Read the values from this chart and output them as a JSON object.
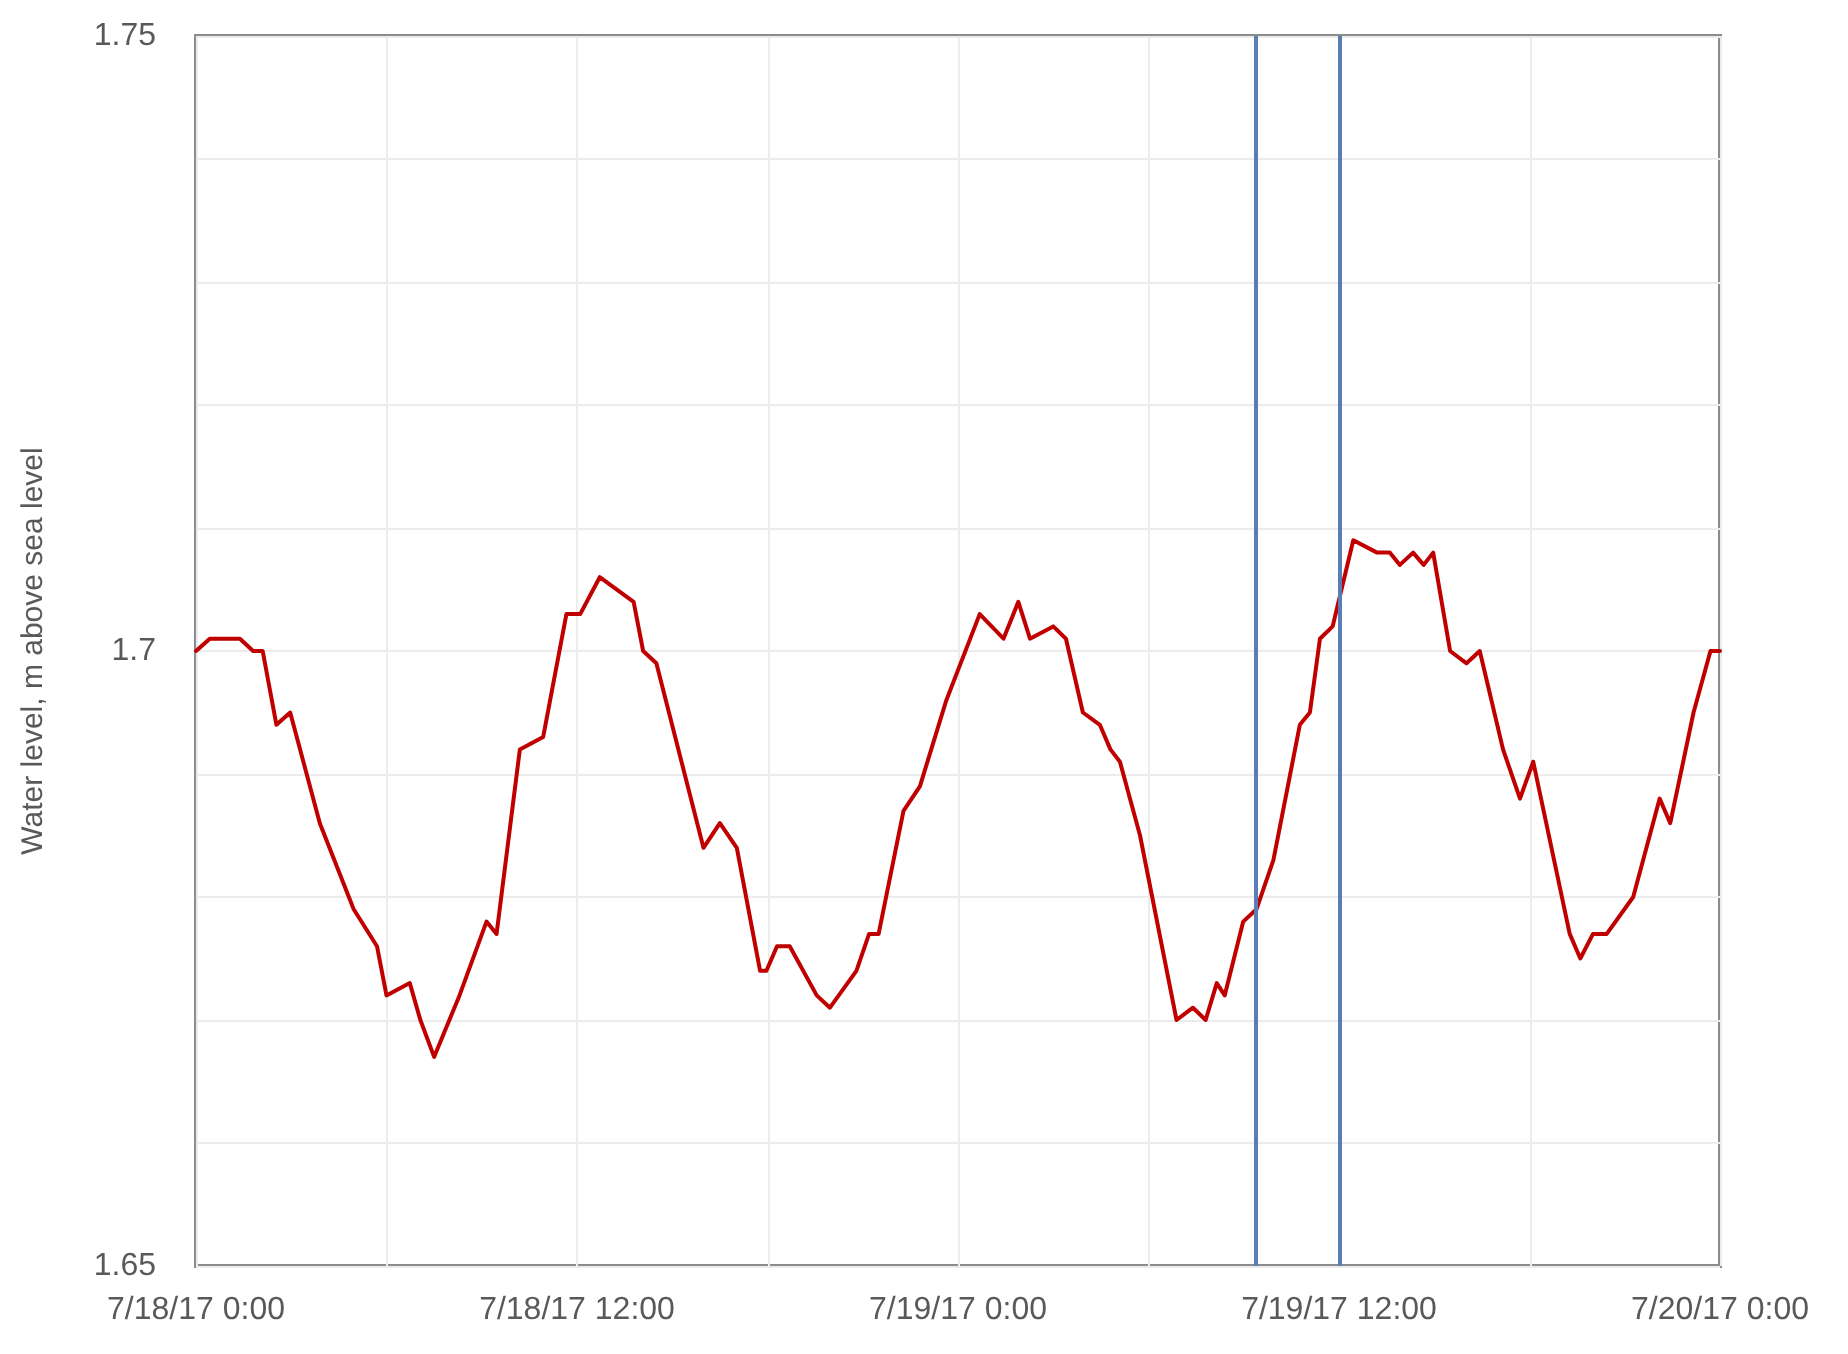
{
  "chart_data": {
    "type": "line",
    "ylabel": "Water level, m above sea level",
    "xlim": [
      "--07-18T00:00",
      "--07-20T00:00"
    ],
    "xticks": [
      {
        "value": "--07-18T00:00",
        "label": "7/18/17 0:00"
      },
      {
        "value": "--07-18T06:00",
        "label": null
      },
      {
        "value": "--07-18T12:00",
        "label": "7/18/17 12:00"
      },
      {
        "value": "--07-18T18:00",
        "label": null
      },
      {
        "value": "--07-19T00:00",
        "label": "7/19/17 0:00"
      },
      {
        "value": "--07-19T06:00",
        "label": null
      },
      {
        "value": "--07-19T12:00",
        "label": "7/19/17 12:00"
      },
      {
        "value": "--07-19T18:00",
        "label": null
      },
      {
        "value": "--07-20T00:00",
        "label": "7/20/17 0:00"
      }
    ],
    "ylim": [
      1.65,
      1.75
    ],
    "yticks": [
      1.65,
      {
        "value": 1.66,
        "label": null
      },
      {
        "value": 1.67,
        "label": null
      },
      {
        "value": 1.68,
        "label": null
      },
      {
        "value": 1.69,
        "label": null
      },
      1.7,
      {
        "value": 1.71,
        "label": null
      },
      {
        "value": 1.72,
        "label": null
      },
      {
        "value": 1.73,
        "label": null
      },
      {
        "value": 1.74,
        "label": null
      },
      1.75
    ],
    "grid": true,
    "marker": "none",
    "line_style": "solid",
    "ref_lines": [
      {
        "axis": "x",
        "value": "--07-19T09:24",
        "label": null,
        "color": "#5b7db5"
      },
      {
        "axis": "x",
        "value": "--07-19T12:00",
        "label": null,
        "color": "#5b7db5"
      }
    ],
    "series": [
      {
        "color": "#c00000",
        "x": [
          "--07-18T00:00",
          "--07-18T00:26",
          "--07-18T01:23",
          "--07-18T01:48",
          "--07-18T02:06",
          "--07-18T02:32",
          "--07-18T02:58",
          "--07-18T03:54",
          "--07-18T04:58",
          "--07-18T05:42",
          "--07-18T06:00",
          "--07-18T06:44",
          "--07-18T07:04",
          "--07-18T07:30",
          "--07-18T08:18",
          "--07-18T09:09",
          "--07-18T09:28",
          "--07-18T10:12",
          "--07-18T10:56",
          "--07-18T11:40",
          "--07-18T12:06",
          "--07-18T12:43",
          "--07-18T13:47",
          "--07-18T14:05",
          "--07-18T14:30",
          "--07-18T15:59",
          "--07-18T16:30",
          "--07-18T17:02",
          "--07-18T17:46",
          "--07-18T17:58",
          "--07-18T18:18",
          "--07-18T18:42",
          "--07-18T19:33",
          "--07-18T19:58",
          "--07-18T20:48",
          "--07-18T21:12",
          "--07-18T21:30",
          "--07-18T22:17",
          "--07-18T22:48",
          "--07-18T23:38",
          "--07-19T00:41",
          "--07-19T01:26",
          "--07-19T01:54",
          "--07-19T02:16",
          "--07-19T03:00",
          "--07-19T03:24",
          "--07-19T03:56",
          "--07-19T04:28",
          "--07-19T04:48",
          "--07-19T05:06",
          "--07-19T05:44",
          "--07-19T06:53",
          "--07-19T07:24",
          "--07-19T07:48",
          "--07-19T08:09",
          "--07-19T08:24",
          "--07-19T08:59",
          "--07-19T09:24",
          "--07-19T09:56",
          "--07-19T10:46",
          "--07-19T11:05",
          "--07-19T11:24",
          "--07-19T11:48",
          "--07-19T12:27",
          "--07-19T13:12",
          "--07-19T13:36",
          "--07-19T13:55",
          "--07-19T14:20",
          "--07-19T14:40",
          "--07-19T14:58",
          "--07-19T15:30",
          "--07-19T16:01",
          "--07-19T16:26",
          "--07-19T17:10",
          "--07-19T17:42",
          "--07-19T18:07",
          "--07-19T19:16",
          "--07-19T19:36",
          "--07-19T20:00",
          "--07-19T20:26",
          "--07-19T21:16",
          "--07-19T22:06",
          "--07-19T22:26",
          "--07-19T23:10",
          "--07-19T23:42",
          "--07-20T00:00"
        ],
        "values": [
          1.7,
          1.701,
          1.701,
          1.7,
          1.7,
          1.694,
          1.695,
          1.686,
          1.679,
          1.676,
          1.672,
          1.673,
          1.67,
          1.667,
          1.672,
          1.678,
          1.677,
          1.692,
          1.693,
          1.703,
          1.703,
          1.706,
          1.704,
          1.7,
          1.699,
          1.684,
          1.686,
          1.684,
          1.674,
          1.674,
          1.676,
          1.676,
          1.672,
          1.671,
          1.674,
          1.677,
          1.677,
          1.687,
          1.689,
          1.696,
          1.703,
          1.701,
          1.704,
          1.701,
          1.702,
          1.701,
          1.695,
          1.694,
          1.692,
          1.691,
          1.685,
          1.67,
          1.671,
          1.67,
          1.673,
          1.672,
          1.678,
          1.679,
          1.683,
          1.694,
          1.695,
          1.701,
          1.702,
          1.709,
          1.708,
          1.708,
          1.707,
          1.708,
          1.707,
          1.708,
          1.7,
          1.699,
          1.7,
          1.692,
          1.688,
          1.691,
          1.677,
          1.675,
          1.677,
          1.677,
          1.68,
          1.688,
          1.686,
          1.695,
          1.7,
          1.7
        ]
      }
    ]
  }
}
